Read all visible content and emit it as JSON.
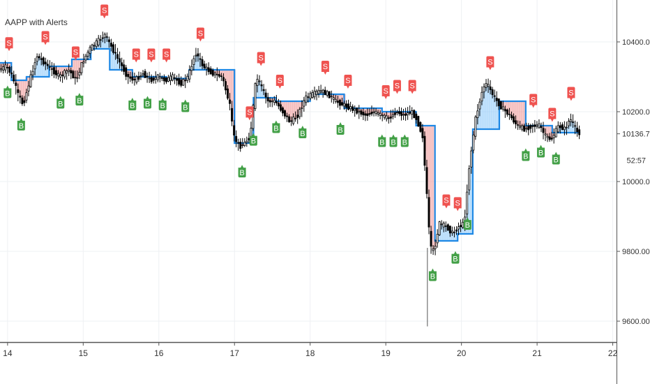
{
  "chart_data": {
    "type": "candlestick",
    "title": "AAPP with Alerts",
    "x_ticks": [
      "14",
      "15",
      "16",
      "17",
      "18",
      "19",
      "20",
      "21",
      "22"
    ],
    "y_ticks": [
      "9600.00",
      "9800.00",
      "10000.00",
      "10200.00",
      "10400.00"
    ],
    "ylim": [
      9540,
      10520
    ],
    "xlim": [
      13.9,
      22.05
    ],
    "last_price": "10136.73",
    "countdown": "52:57",
    "grid": true,
    "colors": {
      "up": "#ffffff",
      "down": "#000000",
      "wick": "#000000",
      "trend_line": "#1e88e5",
      "band_fill_bear": "#ef9a9a",
      "band_fill_bull": "#90caf9",
      "buy_label": "#43a047",
      "sell_label": "#ef5350"
    },
    "price_path": [
      [
        13.9,
        10320
      ],
      [
        14.0,
        10330
      ],
      [
        14.08,
        10300
      ],
      [
        14.15,
        10250
      ],
      [
        14.22,
        10220
      ],
      [
        14.32,
        10300
      ],
      [
        14.4,
        10360
      ],
      [
        14.5,
        10340
      ],
      [
        14.6,
        10320
      ],
      [
        14.7,
        10300
      ],
      [
        14.82,
        10320
      ],
      [
        14.92,
        10290
      ],
      [
        15.0,
        10340
      ],
      [
        15.1,
        10380
      ],
      [
        15.2,
        10400
      ],
      [
        15.3,
        10420
      ],
      [
        15.4,
        10380
      ],
      [
        15.5,
        10340
      ],
      [
        15.6,
        10300
      ],
      [
        15.7,
        10290
      ],
      [
        15.8,
        10310
      ],
      [
        15.9,
        10290
      ],
      [
        16.0,
        10300
      ],
      [
        16.1,
        10290
      ],
      [
        16.2,
        10300
      ],
      [
        16.3,
        10280
      ],
      [
        16.4,
        10300
      ],
      [
        16.5,
        10370
      ],
      [
        16.6,
        10330
      ],
      [
        16.72,
        10310
      ],
      [
        16.85,
        10300
      ],
      [
        16.95,
        10220
      ],
      [
        17.0,
        10130
      ],
      [
        17.08,
        10100
      ],
      [
        17.15,
        10110
      ],
      [
        17.22,
        10130
      ],
      [
        17.3,
        10300
      ],
      [
        17.35,
        10280
      ],
      [
        17.45,
        10230
      ],
      [
        17.55,
        10230
      ],
      [
        17.65,
        10200
      ],
      [
        17.75,
        10170
      ],
      [
        17.85,
        10190
      ],
      [
        17.95,
        10240
      ],
      [
        18.05,
        10250
      ],
      [
        18.15,
        10260
      ],
      [
        18.25,
        10250
      ],
      [
        18.35,
        10230
      ],
      [
        18.45,
        10220
      ],
      [
        18.55,
        10210
      ],
      [
        18.65,
        10200
      ],
      [
        18.75,
        10190
      ],
      [
        18.85,
        10200
      ],
      [
        18.95,
        10190
      ],
      [
        19.05,
        10180
      ],
      [
        19.15,
        10200
      ],
      [
        19.25,
        10190
      ],
      [
        19.35,
        10200
      ],
      [
        19.42,
        10180
      ],
      [
        19.5,
        10130
      ],
      [
        19.55,
        9980
      ],
      [
        19.6,
        9810
      ],
      [
        19.65,
        9800
      ],
      [
        19.72,
        9880
      ],
      [
        19.82,
        9870
      ],
      [
        19.9,
        9850
      ],
      [
        19.97,
        9870
      ],
      [
        20.05,
        9880
      ],
      [
        20.12,
        10050
      ],
      [
        20.2,
        10180
      ],
      [
        20.3,
        10270
      ],
      [
        20.35,
        10280
      ],
      [
        20.45,
        10240
      ],
      [
        20.55,
        10210
      ],
      [
        20.65,
        10190
      ],
      [
        20.75,
        10160
      ],
      [
        20.85,
        10150
      ],
      [
        20.95,
        10160
      ],
      [
        21.05,
        10160
      ],
      [
        21.12,
        10130
      ],
      [
        21.2,
        10120
      ],
      [
        21.3,
        10160
      ],
      [
        21.38,
        10150
      ],
      [
        21.45,
        10180
      ],
      [
        21.55,
        10140
      ]
    ],
    "trend_line": [
      [
        13.9,
        10340
      ],
      [
        14.05,
        10340
      ],
      [
        14.05,
        10290
      ],
      [
        14.25,
        10290
      ],
      [
        14.25,
        10300
      ],
      [
        14.55,
        10300
      ],
      [
        14.55,
        10330
      ],
      [
        14.85,
        10330
      ],
      [
        14.85,
        10350
      ],
      [
        15.1,
        10350
      ],
      [
        15.1,
        10380
      ],
      [
        15.35,
        10380
      ],
      [
        15.35,
        10320
      ],
      [
        15.65,
        10320
      ],
      [
        15.65,
        10300
      ],
      [
        16.1,
        10300
      ],
      [
        16.1,
        10295
      ],
      [
        16.4,
        10295
      ],
      [
        16.4,
        10320
      ],
      [
        17.0,
        10320
      ],
      [
        17.0,
        10110
      ],
      [
        17.25,
        10110
      ],
      [
        17.25,
        10240
      ],
      [
        17.55,
        10240
      ],
      [
        17.55,
        10230
      ],
      [
        18.0,
        10230
      ],
      [
        18.0,
        10250
      ],
      [
        18.45,
        10250
      ],
      [
        18.45,
        10210
      ],
      [
        18.95,
        10210
      ],
      [
        18.95,
        10200
      ],
      [
        19.4,
        10200
      ],
      [
        19.4,
        10160
      ],
      [
        19.65,
        10160
      ],
      [
        19.65,
        9830
      ],
      [
        19.95,
        9830
      ],
      [
        19.95,
        9850
      ],
      [
        20.15,
        9850
      ],
      [
        20.15,
        10150
      ],
      [
        20.5,
        10150
      ],
      [
        20.5,
        10230
      ],
      [
        20.85,
        10230
      ],
      [
        20.85,
        10160
      ],
      [
        21.2,
        10160
      ],
      [
        21.2,
        10140
      ],
      [
        21.55,
        10140
      ]
    ],
    "sell_signals": [
      14.02,
      14.5,
      14.9,
      15.28,
      15.7,
      15.9,
      16.1,
      16.55,
      17.2,
      17.35,
      17.6,
      18.2,
      18.5,
      19.0,
      19.15,
      19.35,
      19.8,
      19.95,
      20.38,
      20.95,
      21.2,
      21.45
    ],
    "buy_signals": [
      14.0,
      14.18,
      14.7,
      14.95,
      15.65,
      15.85,
      16.05,
      16.35,
      17.1,
      17.25,
      17.55,
      17.9,
      18.4,
      18.95,
      19.1,
      19.25,
      19.62,
      19.92,
      20.08,
      20.85,
      21.05,
      21.25
    ]
  },
  "legend": {
    "title": "AAPP with Alerts"
  },
  "labels": {
    "sell": "S",
    "buy": "B"
  }
}
